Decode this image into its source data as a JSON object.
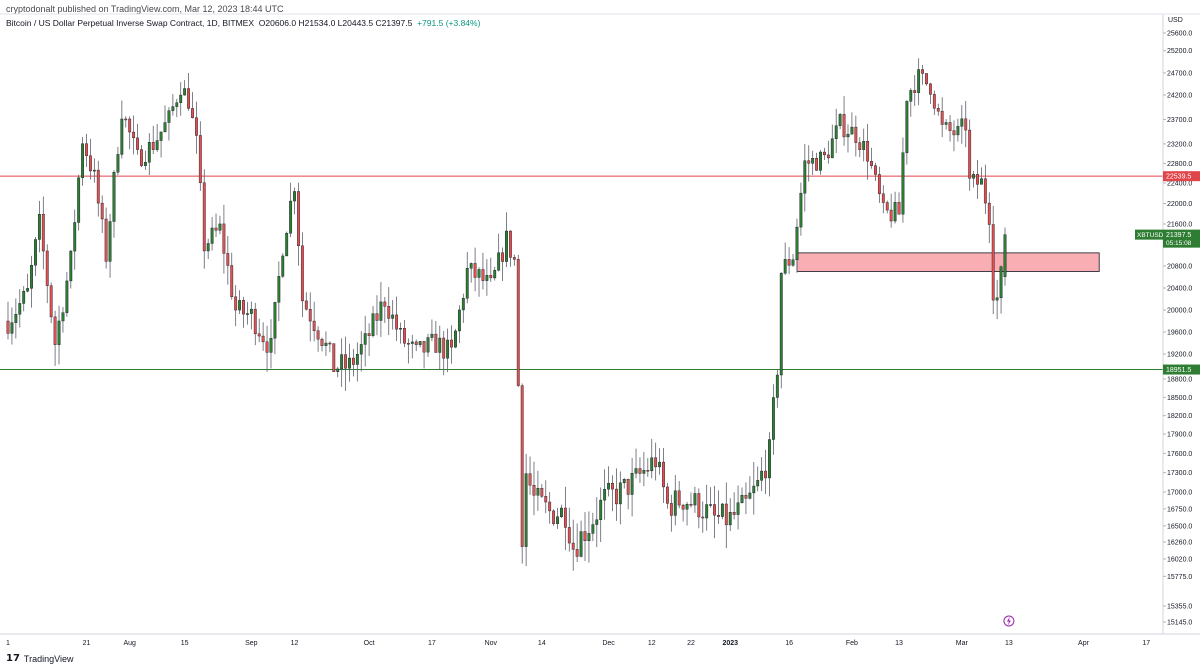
{
  "header": {
    "published": "cryptodonalt published on TradingView.com, Mar 12, 2023 18:44 UTC",
    "symbol_title": "Bitcoin / US Dollar Perpetual Inverse Swap Contract, 1D, BITMEX",
    "ohlc": "O20606.0 H21534.0 L20443.5 C21397.5",
    "change": "+791.5 (+3.84%)"
  },
  "footer": {
    "brand": "TradingView",
    "logo_icon": "tradingview-logo-icon"
  },
  "colors": {
    "up": "#26a69a",
    "up_body": "#2e7d32",
    "down": "#e05252",
    "wick": "#5d606b",
    "resistance": "#e0454a",
    "support": "#2e7d32",
    "zone_fill": "#f9aeb3",
    "axis_text": "#131722",
    "grid": "#e0e3eb"
  },
  "chart_data": {
    "type": "candlestick",
    "title": "Bitcoin / US Dollar Perpetual Inverse Swap Contract",
    "interval": "1D",
    "exchange": "BITMEX",
    "y_axis": {
      "unit": "USD",
      "ticks": [
        25600,
        25200,
        24700,
        24200,
        23700,
        23200,
        22800,
        22400,
        22000,
        21600,
        20800,
        20400,
        20000,
        19600,
        19200,
        18800,
        18500,
        18200,
        17900,
        17600,
        17300,
        17000,
        16750,
        16500,
        16260,
        16020,
        15775,
        15355,
        15145
      ],
      "tick_labels": [
        "25600.0",
        "25200.0",
        "24700.0",
        "24200.0",
        "23700.0",
        "23200.0",
        "22800.0",
        "22400.0",
        "22000.0",
        "21600.0",
        "20800.0",
        "20400.0",
        "20000.0",
        "19600.0",
        "19200.0",
        "18800.0",
        "18500.0",
        "18200.0",
        "17900.0",
        "17600.0",
        "17300.0",
        "17000.0",
        "16750.0",
        "16500.0",
        "16260.0",
        "16020.0",
        "15775.0",
        "15355.0",
        "15145.0"
      ]
    },
    "x_axis": {
      "start_date": "2022-07-01",
      "end_date": "2023-04-21",
      "tick_labels": [
        "1",
        "21",
        "Aug",
        "15",
        "Sep",
        "12",
        "Oct",
        "17",
        "Nov",
        "14",
        "Dec",
        "12",
        "22",
        "2023",
        "16",
        "Feb",
        "13",
        "Mar",
        "13",
        "Apr",
        "17"
      ],
      "tick_dates": [
        "2022-07-01",
        "2022-07-21",
        "2022-08-01",
        "2022-08-15",
        "2022-09-01",
        "2022-09-12",
        "2022-10-01",
        "2022-10-17",
        "2022-11-01",
        "2022-11-14",
        "2022-12-01",
        "2022-12-12",
        "2022-12-22",
        "2023-01-01",
        "2023-01-16",
        "2023-02-01",
        "2023-02-13",
        "2023-03-01",
        "2023-03-13",
        "2023-04-01",
        "2023-04-17"
      ],
      "bold_labels": [
        "2023"
      ]
    },
    "horizontal_lines": [
      {
        "name": "resistance",
        "value": 22539.5,
        "label": "22539.5",
        "color": "#e0454a"
      },
      {
        "name": "support",
        "value": 18951.5,
        "label": "18951.5",
        "color": "#2e7d32"
      }
    ],
    "zone": {
      "start_date": "2023-01-18",
      "end_date": "2023-04-05",
      "low": 20700,
      "high": 21050,
      "color": "#f9aeb3"
    },
    "last_price_label": {
      "symbol": "XBTUSD",
      "price": "21397.5",
      "countdown": "05:15:08",
      "value": 21397.5
    },
    "price_path": [
      [
        "2022-07-01",
        19800
      ],
      [
        "2022-07-06",
        20300
      ],
      [
        "2022-07-09",
        21600
      ],
      [
        "2022-07-13",
        19400
      ],
      [
        "2022-07-17",
        20900
      ],
      [
        "2022-07-20",
        23300
      ],
      [
        "2022-07-23",
        22500
      ],
      [
        "2022-07-26",
        21000
      ],
      [
        "2022-07-30",
        23900
      ],
      [
        "2022-08-03",
        22900
      ],
      [
        "2022-08-07",
        23200
      ],
      [
        "2022-08-11",
        23700
      ],
      [
        "2022-08-14",
        24400
      ],
      [
        "2022-08-16",
        24100
      ],
      [
        "2022-08-18",
        23200
      ],
      [
        "2022-08-20",
        21200
      ],
      [
        "2022-08-24",
        21500
      ],
      [
        "2022-08-28",
        20000
      ],
      [
        "2022-09-01",
        19900
      ],
      [
        "2022-09-06",
        19300
      ],
      [
        "2022-09-09",
        21200
      ],
      [
        "2022-09-12",
        22400
      ],
      [
        "2022-09-14",
        20200
      ],
      [
        "2022-09-19",
        19500
      ],
      [
        "2022-09-22",
        19000
      ],
      [
        "2022-09-26",
        19000
      ],
      [
        "2022-09-30",
        19400
      ],
      [
        "2022-10-05",
        20200
      ],
      [
        "2022-10-09",
        19500
      ],
      [
        "2022-10-13",
        19200
      ],
      [
        "2022-10-18",
        19400
      ],
      [
        "2022-10-22",
        19200
      ],
      [
        "2022-10-26",
        20700
      ],
      [
        "2022-10-29",
        20600
      ],
      [
        "2022-11-01",
        20400
      ],
      [
        "2022-11-05",
        21300
      ],
      [
        "2022-11-07",
        20900
      ],
      [
        "2022-11-08",
        18700
      ],
      [
        "2022-11-09",
        16400
      ],
      [
        "2022-11-10",
        17300
      ],
      [
        "2022-11-12",
        16900
      ],
      [
        "2022-11-16",
        16700
      ],
      [
        "2022-11-20",
        16700
      ],
      [
        "2022-11-22",
        16200
      ],
      [
        "2022-11-26",
        16500
      ],
      [
        "2022-11-30",
        16900
      ],
      [
        "2022-12-04",
        17000
      ],
      [
        "2022-12-08",
        17200
      ],
      [
        "2022-12-13",
        17500
      ],
      [
        "2022-12-16",
        16800
      ],
      [
        "2022-12-20",
        16900
      ],
      [
        "2022-12-24",
        16800
      ],
      [
        "2022-12-28",
        16600
      ],
      [
        "2023-01-01",
        16600
      ],
      [
        "2023-01-05",
        16800
      ],
      [
        "2023-01-08",
        17100
      ],
      [
        "2023-01-11",
        17600
      ],
      [
        "2023-01-13",
        19000
      ],
      [
        "2023-01-14",
        20700
      ],
      [
        "2023-01-17",
        21000
      ],
      [
        "2023-01-20",
        22800
      ],
      [
        "2023-01-25",
        22900
      ],
      [
        "2023-01-29",
        23600
      ],
      [
        "2023-02-02",
        23400
      ],
      [
        "2023-02-05",
        23000
      ],
      [
        "2023-02-09",
        21800
      ],
      [
        "2023-02-13",
        21800
      ],
      [
        "2023-02-15",
        24200
      ],
      [
        "2023-02-18",
        24600
      ],
      [
        "2023-02-21",
        24400
      ],
      [
        "2023-02-24",
        23500
      ],
      [
        "2023-02-28",
        23400
      ],
      [
        "2023-03-02",
        23600
      ],
      [
        "2023-03-03",
        22400
      ],
      [
        "2023-03-06",
        22400
      ],
      [
        "2023-03-08",
        21800
      ],
      [
        "2023-03-09",
        20400
      ],
      [
        "2023-03-10",
        20200
      ],
      [
        "2023-03-11",
        20600
      ],
      [
        "2023-03-12",
        21397.5
      ]
    ]
  }
}
